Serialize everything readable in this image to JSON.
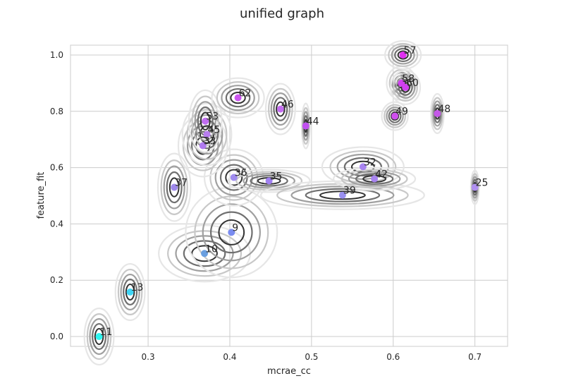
{
  "chart_data": {
    "type": "scatter",
    "title": "unified graph",
    "xlabel": "mcrae_cc",
    "ylabel": "feature_fit",
    "xlim": [
      0.205,
      0.74
    ],
    "ylim": [
      -0.035,
      1.035
    ],
    "xticks": [
      "0.3",
      "0.4",
      "0.5",
      "0.6",
      "0.7"
    ],
    "yticks": [
      "0.0",
      "0.2",
      "0.4",
      "0.6",
      "0.8",
      "1.0"
    ],
    "grid": true,
    "background": "#ffffff",
    "grid_color": "#cccccc",
    "points": [
      {
        "label": "11",
        "x": 0.24,
        "y": 0.0,
        "sx": 0.009,
        "sy": 0.05,
        "color": "#2ef5f0"
      },
      {
        "label": "13",
        "x": 0.278,
        "y": 0.158,
        "sx": 0.009,
        "sy": 0.05,
        "color": "#3fd5f5"
      },
      {
        "label": "10",
        "x": 0.369,
        "y": 0.295,
        "sx": 0.028,
        "sy": 0.05,
        "color": "#6a9fe0"
      },
      {
        "label": "9",
        "x": 0.402,
        "y": 0.37,
        "sx": 0.028,
        "sy": 0.08,
        "color": "#7a8cf0"
      },
      {
        "label": "37",
        "x": 0.332,
        "y": 0.53,
        "sx": 0.01,
        "sy": 0.06,
        "color": "#9e88ea"
      },
      {
        "label": "36",
        "x": 0.405,
        "y": 0.565,
        "sx": 0.018,
        "sy": 0.05,
        "color": "#a08cf0"
      },
      {
        "label": "35",
        "x": 0.448,
        "y": 0.553,
        "sx": 0.025,
        "sy": 0.02,
        "color": "#a080f0"
      },
      {
        "label": "39",
        "x": 0.538,
        "y": 0.502,
        "sx": 0.05,
        "sy": 0.025,
        "color": "#9a90f0"
      },
      {
        "label": "32",
        "x": 0.563,
        "y": 0.603,
        "sx": 0.025,
        "sy": 0.035,
        "color": "#a884f0"
      },
      {
        "label": "42",
        "x": 0.577,
        "y": 0.56,
        "sx": 0.025,
        "sy": 0.02,
        "color": "#a884f0"
      },
      {
        "label": "33",
        "x": 0.367,
        "y": 0.678,
        "sx": 0.015,
        "sy": 0.055,
        "color": "#b07af0"
      },
      {
        "label": "45",
        "x": 0.372,
        "y": 0.718,
        "sx": 0.015,
        "sy": 0.055,
        "color": "#b87ef0"
      },
      {
        "label": "53",
        "x": 0.37,
        "y": 0.765,
        "sx": 0.01,
        "sy": 0.055,
        "color": "#c06ef0"
      },
      {
        "label": "62",
        "x": 0.41,
        "y": 0.848,
        "sx": 0.016,
        "sy": 0.035,
        "color": "#cc55f0"
      },
      {
        "label": "46",
        "x": 0.462,
        "y": 0.808,
        "sx": 0.009,
        "sy": 0.045,
        "color": "#c46ef0"
      },
      {
        "label": "44",
        "x": 0.493,
        "y": 0.748,
        "sx": 0.0025,
        "sy": 0.04,
        "color": "#c050f0"
      },
      {
        "label": "49",
        "x": 0.602,
        "y": 0.783,
        "sx": 0.008,
        "sy": 0.025,
        "color": "#d050f0"
      },
      {
        "label": "48",
        "x": 0.654,
        "y": 0.792,
        "sx": 0.004,
        "sy": 0.035,
        "color": "#c458e8"
      },
      {
        "label": "25",
        "x": 0.7,
        "y": 0.53,
        "sx": 0.0025,
        "sy": 0.03,
        "color": "#b090f0"
      },
      {
        "label": "58",
        "x": 0.61,
        "y": 0.9,
        "sx": 0.009,
        "sy": 0.03,
        "color": "#d040f0"
      },
      {
        "label": "60",
        "x": 0.615,
        "y": 0.885,
        "sx": 0.009,
        "sy": 0.03,
        "color": "#d040f0"
      },
      {
        "label": "57",
        "x": 0.612,
        "y": 1.0,
        "sx": 0.011,
        "sy": 0.025,
        "color": "#e030f0"
      }
    ]
  }
}
